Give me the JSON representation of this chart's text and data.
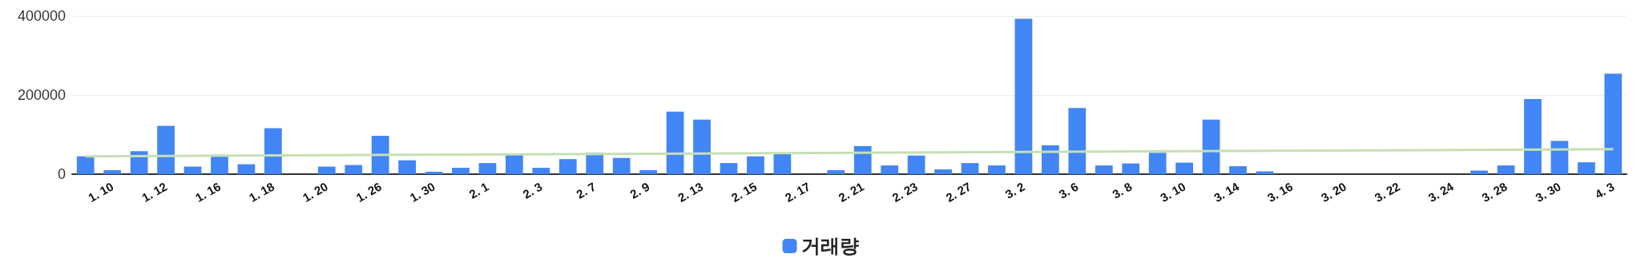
{
  "chart_data": {
    "type": "bar",
    "categories": [
      null,
      "1. 10",
      null,
      "1. 12",
      null,
      "1. 16",
      null,
      "1. 18",
      null,
      "1. 20",
      null,
      "1. 26",
      null,
      "1. 30",
      null,
      "2. 1",
      null,
      "2. 3",
      null,
      "2. 7",
      null,
      "2. 9",
      null,
      "2. 13",
      null,
      "2. 15",
      null,
      "2. 17",
      null,
      "2. 21",
      null,
      "2. 23",
      null,
      "2. 27",
      null,
      "3. 2",
      null,
      "3. 6",
      null,
      "3. 8",
      null,
      "3. 10",
      null,
      "3. 14",
      null,
      "3. 16",
      null,
      "3. 20",
      null,
      "3. 22",
      null,
      "3. 24",
      null,
      "3. 28",
      null,
      "3. 30",
      null,
      "4. 3"
    ],
    "series": [
      {
        "name": "거래량",
        "color": "#4285f4",
        "values": [
          45000,
          10000,
          58000,
          122000,
          19000,
          49000,
          25000,
          116000,
          0,
          19000,
          23000,
          97000,
          35000,
          6000,
          16000,
          28000,
          50000,
          16000,
          38000,
          54000,
          41000,
          10000,
          158000,
          138000,
          28000,
          45000,
          54000,
          0,
          10000,
          71000,
          22000,
          47000,
          12000,
          28000,
          22000,
          393000,
          73000,
          167000,
          22000,
          27000,
          54000,
          29000,
          138000,
          20000,
          7000,
          0,
          0,
          0,
          0,
          0,
          0,
          0,
          9000,
          22000,
          190000,
          84000,
          30000,
          254000
        ]
      },
      {
        "type": "line",
        "color": "#c5e0b4",
        "values": [
          45000,
          null,
          null,
          null,
          null,
          null,
          null,
          null,
          null,
          null,
          null,
          null,
          null,
          null,
          null,
          null,
          null,
          null,
          null,
          null,
          null,
          null,
          null,
          null,
          null,
          null,
          null,
          null,
          null,
          null,
          null,
          null,
          null,
          null,
          null,
          null,
          null,
          null,
          null,
          null,
          null,
          null,
          null,
          null,
          null,
          null,
          null,
          null,
          null,
          null,
          null,
          null,
          null,
          null,
          null,
          null,
          null,
          63000
        ]
      }
    ],
    "ylim": [
      0,
      400000
    ],
    "yticks": [
      0,
      200000,
      400000
    ],
    "grid": "y",
    "legend": "bottom",
    "marker": "none"
  }
}
